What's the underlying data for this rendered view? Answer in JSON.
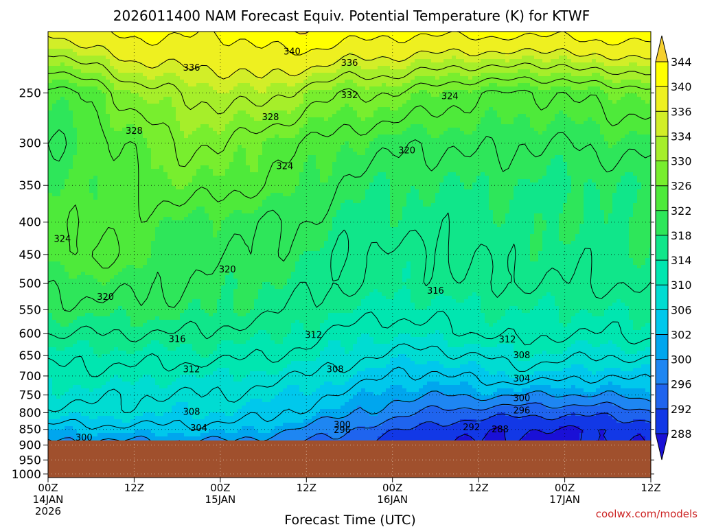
{
  "title": "2026011400 NAM Forecast Equiv. Potential Temperature (K) for KTWF",
  "xlabel": "Forecast Time (UTC)",
  "credit": "coolwx.com/models",
  "colors": {
    "ground": "#a0502d",
    "contour": "#000000",
    "grid": "#000000",
    "scale": [
      "#1a10d6",
      "#1238e6",
      "#1f64ee",
      "#1e86f2",
      "#00a6ee",
      "#00c8ec",
      "#00dcd2",
      "#00e6b0",
      "#10e68a",
      "#2ee65a",
      "#4eea3a",
      "#78ee2e",
      "#a6ee2a",
      "#d2ee28",
      "#eef020",
      "#ffff00",
      "#f6d030"
    ]
  },
  "chart_data": {
    "type": "heatmap",
    "title": "2026011400 NAM Forecast Equiv. Potential Temperature (K) for KTWF",
    "xlabel": "Forecast Time (UTC)",
    "ylabel": "",
    "variable": "Equivalent potential temperature (K)",
    "x_ticks": [
      {
        "hour": 0,
        "line1": "00Z",
        "line2": "14JAN",
        "line3": "2026"
      },
      {
        "hour": 12,
        "line1": "12Z",
        "line2": "",
        "line3": ""
      },
      {
        "hour": 24,
        "line1": "00Z",
        "line2": "15JAN",
        "line3": ""
      },
      {
        "hour": 36,
        "line1": "12Z",
        "line2": "",
        "line3": ""
      },
      {
        "hour": 48,
        "line1": "00Z",
        "line2": "16JAN",
        "line3": ""
      },
      {
        "hour": 60,
        "line1": "12Z",
        "line2": "",
        "line3": ""
      },
      {
        "hour": 72,
        "line1": "00Z",
        "line2": "17JAN",
        "line3": ""
      },
      {
        "hour": 84,
        "line1": "12Z",
        "line2": "",
        "line3": ""
      }
    ],
    "xlim": [
      0,
      84
    ],
    "y_ticks": [
      250,
      300,
      350,
      400,
      450,
      500,
      550,
      600,
      650,
      700,
      750,
      800,
      850,
      900,
      950,
      1000
    ],
    "ylim": [
      200,
      1013
    ],
    "y_scale": "log-pressure",
    "surface_pressure_hPa": 885,
    "colorbar_levels": [
      288,
      292,
      296,
      300,
      302,
      306,
      310,
      314,
      318,
      322,
      326,
      330,
      334,
      336,
      340,
      344
    ],
    "contour_interval": 4,
    "forecast_hours": [
      0,
      6,
      12,
      18,
      24,
      30,
      36,
      42,
      48,
      54,
      60,
      66,
      72,
      78,
      84
    ],
    "pressure_levels": [
      200,
      250,
      300,
      350,
      400,
      450,
      500,
      550,
      600,
      650,
      700,
      750,
      800,
      850,
      885
    ],
    "theta_e": [
      [
        336,
        340,
        341,
        341,
        340,
        342,
        344,
        342,
        341,
        341,
        341,
        342,
        340,
        344,
        341
      ],
      [
        322,
        325,
        330,
        332,
        333,
        334,
        330,
        328,
        328,
        326,
        324,
        324,
        324,
        326,
        326
      ],
      [
        320,
        322,
        325,
        328,
        329,
        325,
        324,
        322,
        321,
        320,
        321,
        320,
        320,
        321,
        321
      ],
      [
        322,
        322,
        324,
        326,
        325,
        324,
        322,
        319,
        318,
        318,
        318,
        318,
        317,
        318,
        318
      ],
      [
        323,
        324,
        323,
        322,
        321,
        320,
        320,
        317,
        317,
        317,
        317,
        318,
        318,
        318,
        319
      ],
      [
        323,
        325,
        323,
        321,
        320,
        320,
        318,
        316,
        315,
        316,
        316,
        317,
        317,
        317,
        318
      ],
      [
        321,
        321,
        321,
        320,
        319,
        318,
        317,
        316,
        315,
        315,
        316,
        316,
        316,
        316,
        317
      ],
      [
        319,
        319,
        319,
        319,
        318,
        317,
        315,
        314,
        313,
        313,
        314,
        314,
        314,
        314,
        315
      ],
      [
        316,
        316,
        316,
        316,
        315,
        315,
        313,
        311,
        310,
        311,
        312,
        313,
        312,
        312,
        313
      ],
      [
        313,
        313,
        313,
        313,
        313,
        312,
        311,
        309,
        307,
        307,
        308,
        310,
        309,
        308,
        309
      ],
      [
        311,
        311,
        311,
        310,
        310,
        309,
        308,
        306,
        304,
        303,
        305,
        306,
        305,
        304,
        305
      ],
      [
        309,
        309,
        308,
        308,
        308,
        307,
        305,
        303,
        301,
        300,
        301,
        300,
        300,
        300,
        302
      ],
      [
        307,
        307,
        307,
        306,
        306,
        305,
        303,
        301,
        298,
        295,
        294,
        293,
        293,
        293,
        295
      ],
      [
        302,
        303,
        303,
        303,
        303,
        302,
        299,
        296,
        293,
        290,
        289,
        288,
        288,
        288,
        290
      ],
      [
        300,
        300,
        300,
        300,
        300,
        299,
        296,
        294,
        291,
        289,
        288,
        287,
        287,
        288,
        289
      ]
    ],
    "contour_labels": [
      {
        "text": "340",
        "hour": 34,
        "p": 215
      },
      {
        "text": "336",
        "hour": 20,
        "p": 228
      },
      {
        "text": "336",
        "hour": 42,
        "p": 224
      },
      {
        "text": "332",
        "hour": 42,
        "p": 252
      },
      {
        "text": "324",
        "hour": 56,
        "p": 253
      },
      {
        "text": "328",
        "hour": 31,
        "p": 273
      },
      {
        "text": "328",
        "hour": 12,
        "p": 287
      },
      {
        "text": "320",
        "hour": 50,
        "p": 308
      },
      {
        "text": "324",
        "hour": 33,
        "p": 326
      },
      {
        "text": "324",
        "hour": 2,
        "p": 425
      },
      {
        "text": "320",
        "hour": 25,
        "p": 475
      },
      {
        "text": "320",
        "hour": 8,
        "p": 525
      },
      {
        "text": "316",
        "hour": 54,
        "p": 513
      },
      {
        "text": "316",
        "hour": 18,
        "p": 612
      },
      {
        "text": "312",
        "hour": 37,
        "p": 603
      },
      {
        "text": "312",
        "hour": 64,
        "p": 613
      },
      {
        "text": "312",
        "hour": 20,
        "p": 683
      },
      {
        "text": "308",
        "hour": 40,
        "p": 683
      },
      {
        "text": "308",
        "hour": 66,
        "p": 649
      },
      {
        "text": "304",
        "hour": 66,
        "p": 706
      },
      {
        "text": "300",
        "hour": 66,
        "p": 758
      },
      {
        "text": "296",
        "hour": 66,
        "p": 793
      },
      {
        "text": "308",
        "hour": 20,
        "p": 797
      },
      {
        "text": "304",
        "hour": 21,
        "p": 845
      },
      {
        "text": "300",
        "hour": 41,
        "p": 836
      },
      {
        "text": "296",
        "hour": 41,
        "p": 852
      },
      {
        "text": "292",
        "hour": 59,
        "p": 843
      },
      {
        "text": "288",
        "hour": 63,
        "p": 850
      },
      {
        "text": "300",
        "hour": 5,
        "p": 875
      }
    ]
  }
}
